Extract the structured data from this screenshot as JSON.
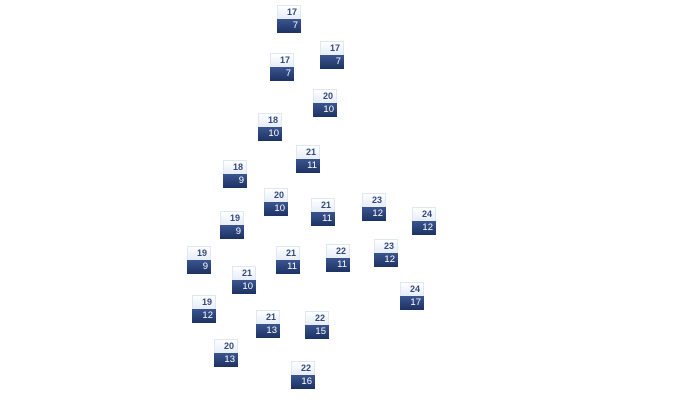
{
  "forecast_markers": [
    {
      "high": "17",
      "low": "7"
    },
    {
      "high": "17",
      "low": "7"
    },
    {
      "high": "17",
      "low": "7"
    },
    {
      "high": "20",
      "low": "10"
    },
    {
      "high": "18",
      "low": "10"
    },
    {
      "high": "21",
      "low": "11"
    },
    {
      "high": "18",
      "low": "9"
    },
    {
      "high": "20",
      "low": "10"
    },
    {
      "high": "21",
      "low": "11"
    },
    {
      "high": "23",
      "low": "12"
    },
    {
      "high": "24",
      "low": "12"
    },
    {
      "high": "19",
      "low": "9"
    },
    {
      "high": "19",
      "low": "9"
    },
    {
      "high": "21",
      "low": "11"
    },
    {
      "high": "22",
      "low": "11"
    },
    {
      "high": "23",
      "low": "12"
    },
    {
      "high": "21",
      "low": "10"
    },
    {
      "high": "24",
      "low": "17"
    },
    {
      "high": "19",
      "low": "12"
    },
    {
      "high": "21",
      "low": "13"
    },
    {
      "high": "22",
      "low": "15"
    },
    {
      "high": "20",
      "low": "13"
    },
    {
      "high": "22",
      "low": "16"
    }
  ],
  "colors": {
    "high_text": "#34497a",
    "low_bg": "#2c4472",
    "low_text": "#ffffff"
  }
}
